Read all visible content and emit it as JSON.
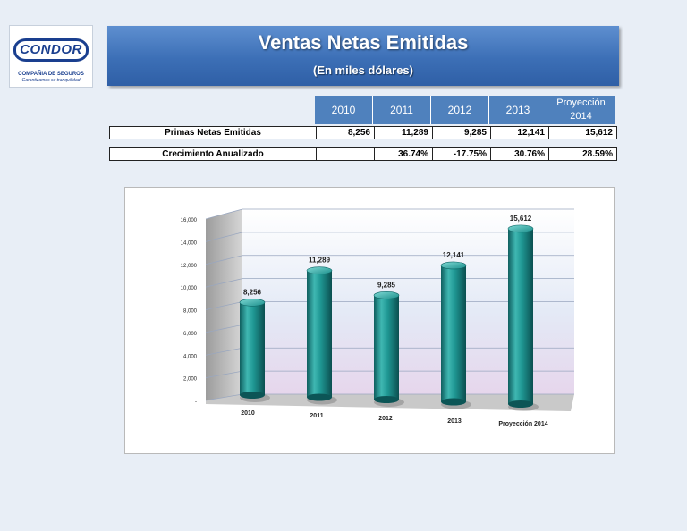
{
  "logo": {
    "wordmark": "CONDOR",
    "line1": "COMPAÑIA DE SEGUROS",
    "line2": "Garantizamos su tranquilidad"
  },
  "header": {
    "title": "Ventas Netas Emitidas",
    "subtitle": "(En miles dólares)"
  },
  "table": {
    "columns": [
      "2010",
      "2011",
      "2012",
      "2013"
    ],
    "projection_line1": "Proyección",
    "projection_line2": "2014",
    "rows": [
      {
        "label": "Primas Netas Emitidas",
        "values": [
          "8,256",
          "11,289",
          "9,285",
          "12,141",
          "15,612"
        ]
      },
      {
        "label": "Crecimiento Anualizado",
        "values": [
          "",
          "36.74%",
          "-17.75%",
          "30.76%",
          "28.59%"
        ]
      }
    ]
  },
  "chart_data": {
    "type": "bar",
    "title": "",
    "xlabel": "",
    "ylabel": "",
    "categories": [
      "2010",
      "2011",
      "2012",
      "2013",
      "Proyección  2014"
    ],
    "values": [
      8256,
      11289,
      9285,
      12141,
      15612
    ],
    "data_labels": [
      "8,256",
      "11,289",
      "9,285",
      "12,141",
      "15,612"
    ],
    "ylim": [
      0,
      16000
    ],
    "yticks": [
      {
        "value": 0,
        "label": "-"
      },
      {
        "value": 2000,
        "label": "2,000"
      },
      {
        "value": 4000,
        "label": "4,000"
      },
      {
        "value": 6000,
        "label": "6,000"
      },
      {
        "value": 8000,
        "label": "8,000"
      },
      {
        "value": 10000,
        "label": "10,000"
      },
      {
        "value": 12000,
        "label": "12,000"
      },
      {
        "value": 14000,
        "label": "14,000"
      },
      {
        "value": 16000,
        "label": "16,000"
      }
    ],
    "grid": true,
    "style": "3d-cylinder",
    "bar_color": "#1f8f8f"
  }
}
